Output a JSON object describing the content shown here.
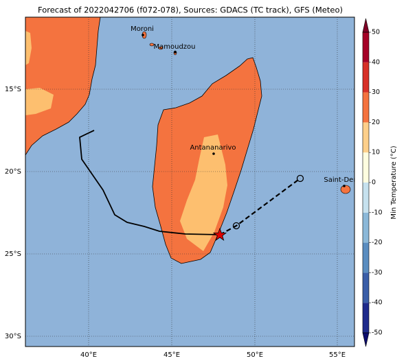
{
  "header": {
    "title": "Forecast of 2022042706 (f072-078), Sources: GDACS (TC track), GFS (Meteo)"
  },
  "map": {
    "lat_labels": [
      "15°S",
      "20°S",
      "25°S",
      "30°S"
    ],
    "lon_labels": [
      "40°E",
      "45°E",
      "50°E",
      "55°E"
    ],
    "cities": [
      "Moroni",
      "Mamoudzou",
      "Antananarivo",
      "Saint-Denis"
    ]
  },
  "colorbar": {
    "label": "Min Temperature (°C)",
    "ticks": [
      -50,
      -40,
      -30,
      -20,
      -10,
      0,
      10,
      20,
      30,
      40,
      50
    ],
    "colors": [
      "#1e2a8c",
      "#3a5ea8",
      "#5a8dc0",
      "#8bb8d8",
      "#c6e1ee",
      "#fefde0",
      "#fdcf8a",
      "#f4733f",
      "#d73027",
      "#a50026"
    ],
    "under_color": "#0c0c6e",
    "over_color": "#800026"
  }
}
